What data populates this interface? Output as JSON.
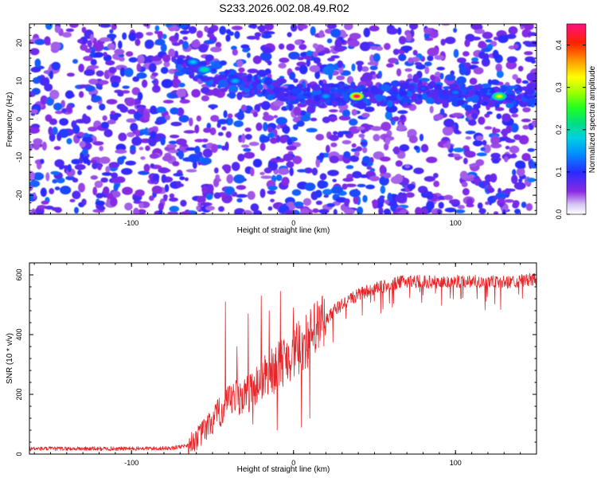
{
  "title": "S233.2026.002.08.49.R02",
  "chart_data": [
    {
      "type": "heatmap",
      "xlabel": "Height of straight line (km)",
      "ylabel": "Frequency (Hz)",
      "xlim": [
        -163,
        150
      ],
      "ylim": [
        -25,
        25
      ],
      "x_ticks": [
        -100,
        0,
        100
      ],
      "y_ticks": [
        -20,
        -10,
        0,
        10,
        20
      ],
      "colorbar": {
        "label": "Normalized spectral amplitude",
        "range": [
          0,
          0.45
        ],
        "ticks": [
          0.0,
          0.1,
          0.2,
          0.3,
          0.4
        ],
        "tick_labels": [
          "0.0",
          "0.1",
          "0.2",
          "0.3",
          "0.4"
        ]
      },
      "description_points": [
        {
          "x": 39,
          "y": 6,
          "v": 0.45
        },
        {
          "x": 127,
          "y": 6,
          "v": 0.32
        },
        {
          "x": -55,
          "y": 13,
          "v": 0.22
        },
        {
          "x": -62,
          "y": 15,
          "v": 0.18
        },
        {
          "x": -36,
          "y": 10,
          "v": 0.17
        },
        {
          "x": 20,
          "y": 6,
          "v": 0.16
        },
        {
          "x": 100,
          "y": 7,
          "v": 0.14
        },
        {
          "x": 80,
          "y": 8,
          "v": 0.12
        }
      ],
      "ridge": [
        {
          "x": -70,
          "y": 14
        },
        {
          "x": -40,
          "y": 10
        },
        {
          "x": 0,
          "y": 7
        },
        {
          "x": 40,
          "y": 6
        },
        {
          "x": 80,
          "y": 7
        },
        {
          "x": 130,
          "y": 6
        },
        {
          "x": 150,
          "y": 6
        }
      ]
    },
    {
      "type": "line",
      "xlabel": "Height of straight line (km)",
      "ylabel": "SNR (10 * v/v)",
      "xlim": [
        -163,
        150
      ],
      "ylim": [
        0,
        640
      ],
      "x_ticks": [
        -100,
        0,
        100
      ],
      "y_ticks": [
        0,
        200,
        400,
        600
      ],
      "color": "#e8262a",
      "series_envelope": [
        {
          "x": -163,
          "y": 18
        },
        {
          "x": -130,
          "y": 18
        },
        {
          "x": -100,
          "y": 18
        },
        {
          "x": -75,
          "y": 20
        },
        {
          "x": -65,
          "y": 30
        },
        {
          "x": -58,
          "y": 60
        },
        {
          "x": -50,
          "y": 110
        },
        {
          "x": -42,
          "y": 160
        },
        {
          "x": -35,
          "y": 190
        },
        {
          "x": -28,
          "y": 200
        },
        {
          "x": -20,
          "y": 250
        },
        {
          "x": -12,
          "y": 280
        },
        {
          "x": -5,
          "y": 320
        },
        {
          "x": 5,
          "y": 360
        },
        {
          "x": 15,
          "y": 420
        },
        {
          "x": 25,
          "y": 480
        },
        {
          "x": 35,
          "y": 520
        },
        {
          "x": 45,
          "y": 545
        },
        {
          "x": 55,
          "y": 560
        },
        {
          "x": 70,
          "y": 580
        },
        {
          "x": 90,
          "y": 575
        },
        {
          "x": 110,
          "y": 580
        },
        {
          "x": 130,
          "y": 575
        },
        {
          "x": 150,
          "y": 585
        }
      ],
      "spikes": [
        {
          "x": -42,
          "y": 510
        },
        {
          "x": -35,
          "y": 360
        },
        {
          "x": -28,
          "y": 470
        },
        {
          "x": -20,
          "y": 530
        },
        {
          "x": -15,
          "y": 480
        },
        {
          "x": -8,
          "y": 545
        },
        {
          "x": 0,
          "y": 490
        },
        {
          "x": 5,
          "y": 90
        },
        {
          "x": 10,
          "y": 120
        },
        {
          "x": -10,
          "y": 80
        },
        {
          "x": -25,
          "y": 100
        }
      ]
    }
  ]
}
